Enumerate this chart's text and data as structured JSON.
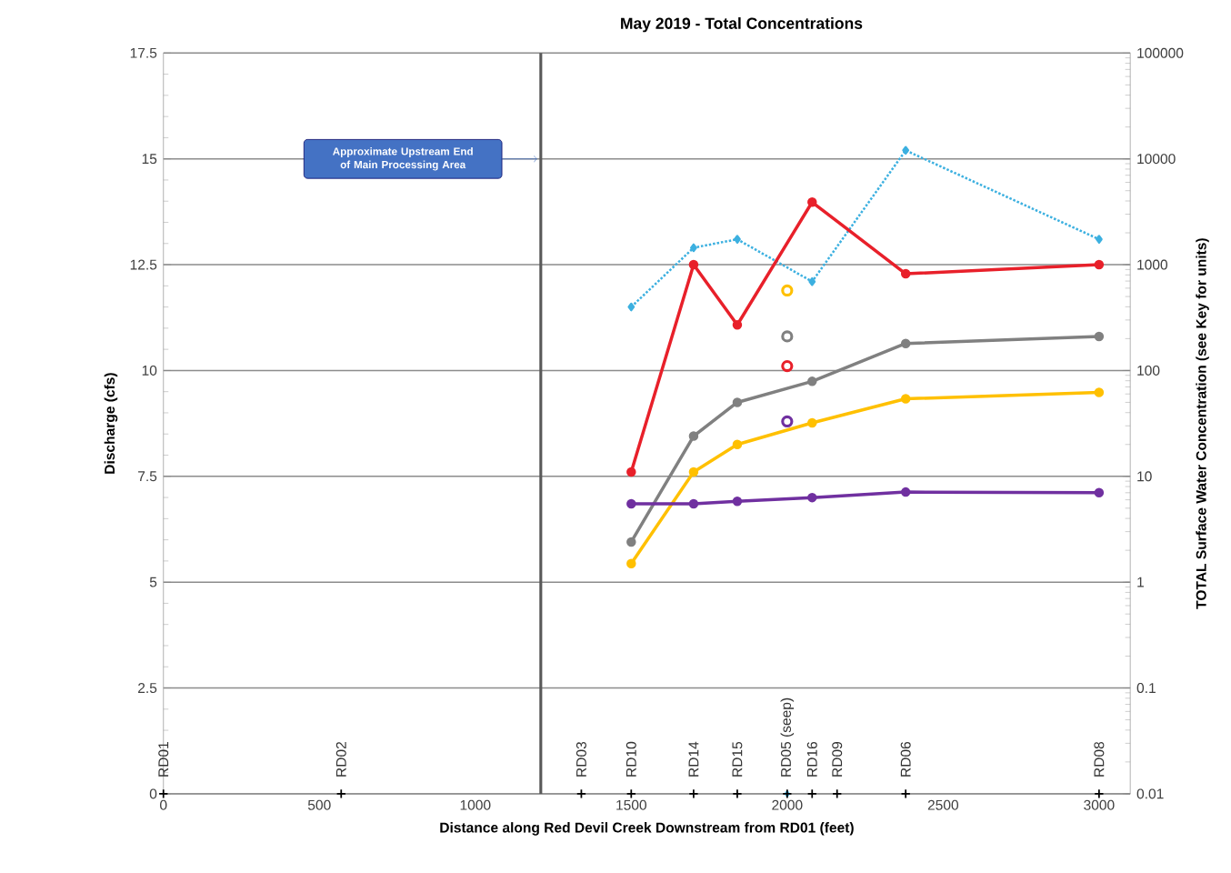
{
  "chart_data": {
    "type": "line",
    "title": "May 2019 - Total Concentrations",
    "xlabel": "Distance along Red Devil Creek Downstream from RD01 (feet)",
    "ylabel": "Discharge (cfs)",
    "y2label": "TOTAL Surface Water Concentration (see Key for units)",
    "xlim": [
      0,
      3100
    ],
    "xticks": [
      0,
      500,
      1000,
      1500,
      2000,
      2500,
      3000
    ],
    "ylim": [
      0,
      17.5
    ],
    "yticks": [
      0,
      2.5,
      5,
      7.5,
      10,
      12.5,
      15,
      17.5
    ],
    "y2lim": [
      0.01,
      100000
    ],
    "y2ticks": [
      0.01,
      0.1,
      1,
      10,
      100,
      1000,
      10000,
      100000
    ],
    "log": "y2",
    "grid": "y",
    "series": [
      {
        "color": "#3cb0e0",
        "marker": "diamond",
        "line_style": "dotted",
        "x": [
          1500,
          1700,
          1840,
          2080,
          2380,
          3000
        ],
        "values": [
          11.5,
          12.9,
          13.1,
          12.1,
          15.2,
          13.1
        ]
      },
      {
        "type": "scatter",
        "color": "#3cb0e0",
        "marker": "diamond",
        "x": [
          2000
        ],
        "values": [
          0
        ]
      },
      {
        "axis": "y2",
        "color": "#e8202a",
        "marker": "circle",
        "line_style": "solid",
        "x": [
          1500,
          1700,
          1840,
          2080,
          2380,
          3000
        ],
        "values": [
          11,
          1000,
          270,
          3900,
          820,
          1000
        ]
      },
      {
        "axis": "y2",
        "color": "#808080",
        "marker": "circle",
        "line_style": "solid",
        "x": [
          1500,
          1700,
          1840,
          2080,
          2380,
          3000
        ],
        "values": [
          2.4,
          24,
          50,
          79,
          180,
          210
        ]
      },
      {
        "axis": "y2",
        "color": "#ffc000",
        "marker": "circle",
        "line_style": "solid",
        "x": [
          1500,
          1700,
          1840,
          2080,
          2380,
          3000
        ],
        "values": [
          1.5,
          11,
          20,
          32,
          54,
          62
        ]
      },
      {
        "axis": "y2",
        "color": "#7030a0",
        "marker": "circle",
        "line_style": "solid",
        "x": [
          1500,
          1700,
          1840,
          2080,
          2380,
          3000
        ],
        "values": [
          5.5,
          5.5,
          5.8,
          6.3,
          7.1,
          7.0
        ]
      },
      {
        "type": "scatter",
        "axis": "y2",
        "marker": "circle",
        "colors": [
          "#ffc000",
          "#808080",
          "#e8202a",
          "#7030a0"
        ],
        "x": [
          2000,
          2000,
          2000,
          2000
        ],
        "values": [
          570,
          210,
          110,
          33
        ]
      },
      {
        "type": "scatter",
        "color": "#000000",
        "marker": "cross",
        "x": [
          0,
          570,
          1340,
          1500,
          1700,
          1840,
          2000,
          2080,
          2160,
          2380,
          3000
        ],
        "values": [
          0,
          0,
          0,
          0,
          0,
          0,
          0,
          0,
          0,
          0,
          0
        ]
      }
    ],
    "ref_lines": [
      {
        "axis": "x",
        "value": 1210,
        "color": "#595959"
      }
    ],
    "annotations": [
      "Approximate Upstream End of Main Processing Area",
      {
        "text": "RD01",
        "x": 0,
        "y": 0
      },
      {
        "text": "RD02",
        "x": 570,
        "y": 0
      },
      {
        "text": "RD03",
        "x": 1340,
        "y": 0
      },
      {
        "text": "RD10",
        "x": 1500,
        "y": 0
      },
      {
        "text": "RD14",
        "x": 1700,
        "y": 0
      },
      {
        "text": "RD15",
        "x": 1840,
        "y": 0
      },
      {
        "text": "RD05 (seep)",
        "x": 2000,
        "y": 0
      },
      {
        "text": "RD16",
        "x": 2080,
        "y": 0
      },
      {
        "text": "RD09",
        "x": 2160,
        "y": 0
      },
      {
        "text": "RD06",
        "x": 2380,
        "y": 0
      },
      {
        "text": "RD08",
        "x": 3000,
        "y": 0
      }
    ]
  }
}
